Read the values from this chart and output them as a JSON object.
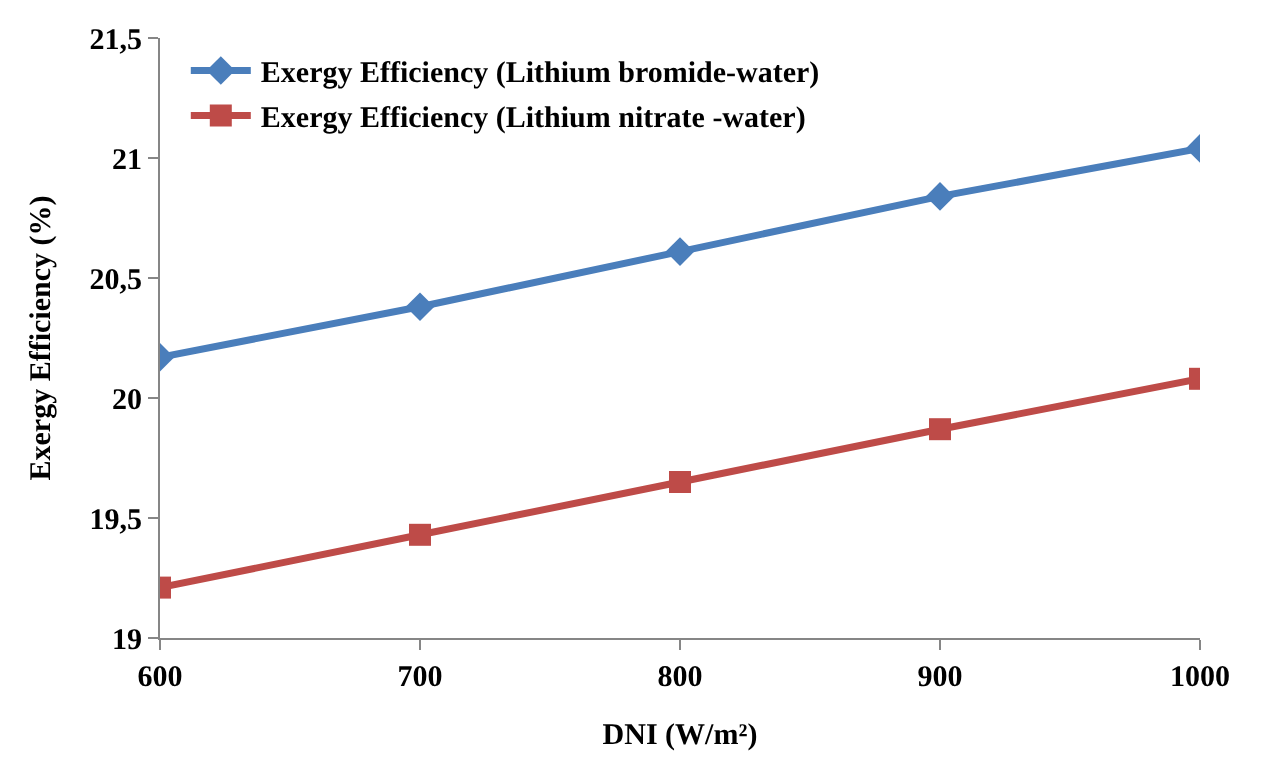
{
  "chart_data": {
    "type": "line",
    "xlabel": "DNI (W/m²)",
    "ylabel": "Exergy Efficiency (%)",
    "x": [
      600,
      700,
      800,
      900,
      1000
    ],
    "series": [
      {
        "name": "Exergy Efficiency (Lithium bromide-water)",
        "color": "#4a7ebb",
        "values": [
          20.17,
          20.38,
          20.61,
          20.84,
          21.04
        ],
        "marker": "diamond"
      },
      {
        "name": "Exergy Efficiency (Lithium nitrate -water)",
        "color": "#be4b48",
        "values": [
          19.21,
          19.43,
          19.65,
          19.87,
          20.08
        ],
        "marker": "square"
      }
    ],
    "xlim": [
      600,
      1000
    ],
    "xticks": [
      600,
      700,
      800,
      900,
      1000
    ],
    "ylim": [
      19,
      21.5
    ],
    "yticks": [
      19,
      {
        "value": 19.5,
        "label": "19,5"
      },
      20,
      {
        "value": 20.5,
        "label": "20,5"
      },
      21,
      {
        "value": 21.5,
        "label": "21,5"
      }
    ],
    "legend": "top left",
    "line_style": "solid"
  }
}
